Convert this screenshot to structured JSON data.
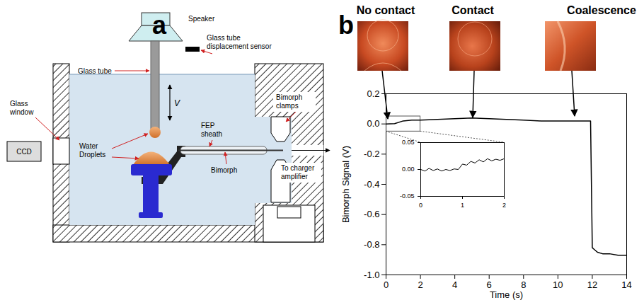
{
  "panels": {
    "a": {
      "label": "a",
      "diagram": {
        "speaker": "Speaker",
        "sensor": [
          "Glass tube",
          "displacement sensor"
        ],
        "glass_tube": "Glass tube",
        "velocity": "V",
        "glass_window": [
          "Glass",
          "window"
        ],
        "camera": "CCD",
        "droplets": [
          "Water",
          "Droplets"
        ],
        "sheath": [
          "FEP",
          "sheath"
        ],
        "bimorph": "Bimorph",
        "clamps": [
          "Bimorph",
          "clamps"
        ],
        "output": [
          "To charger",
          "amplifier"
        ]
      }
    },
    "b": {
      "label": "b",
      "photos": [
        "No contact",
        "Contact",
        "Coalescence"
      ]
    }
  },
  "chart_data": [
    {
      "type": "line",
      "xlabel": "Time (s)",
      "ylabel": "Bimorph Signal (V)",
      "x": [
        0,
        0.5,
        1,
        1.5,
        2,
        3,
        4,
        5,
        6,
        7,
        8,
        9,
        10,
        11,
        11.9,
        12.0,
        12.1,
        12.3,
        12.6,
        13,
        13.5,
        14
      ],
      "values": [
        0,
        0.002,
        0.02,
        0.025,
        0.025,
        0.03,
        0.035,
        0.04,
        0.035,
        0.03,
        0.025,
        0.02,
        0.02,
        0.02,
        0.02,
        -0.82,
        -0.83,
        -0.85,
        -0.86,
        -0.86,
        -0.87,
        -0.87
      ],
      "color": "#000000",
      "xlim": [
        0,
        14
      ],
      "xticks": [
        0,
        2,
        4,
        6,
        8,
        10,
        12,
        14
      ],
      "ylim": [
        -1,
        0.2
      ],
      "yticks": [
        0.2,
        {
          "value": 0,
          "label": "0.0"
        },
        -0.2,
        -0.4,
        -0.6,
        -0.8,
        {
          "value": -1,
          "label": "-1.0"
        }
      ]
    },
    {
      "type": "line",
      "x": [
        0,
        0.1,
        0.2,
        0.3,
        0.4,
        0.5,
        0.6,
        0.7,
        0.8,
        0.9,
        1.0,
        1.1,
        1.2,
        1.3,
        1.4,
        1.5,
        1.6,
        1.7,
        1.8,
        1.9,
        2.0
      ],
      "values": [
        0.0,
        -0.003,
        0.002,
        -0.002,
        0.001,
        -0.003,
        0.0,
        -0.002,
        0.001,
        0.0,
        0.01,
        0.008,
        0.015,
        0.012,
        0.018,
        0.014,
        0.02,
        0.016,
        0.019,
        0.017,
        0.02
      ],
      "color": "#000000",
      "xlim": [
        0,
        2
      ],
      "xticks": [
        0,
        1,
        2
      ],
      "ylim": [
        -0.05,
        0.05
      ],
      "yticks": [
        -0.05,
        {
          "value": 0,
          "label": "0.00"
        },
        0.05
      ]
    }
  ]
}
